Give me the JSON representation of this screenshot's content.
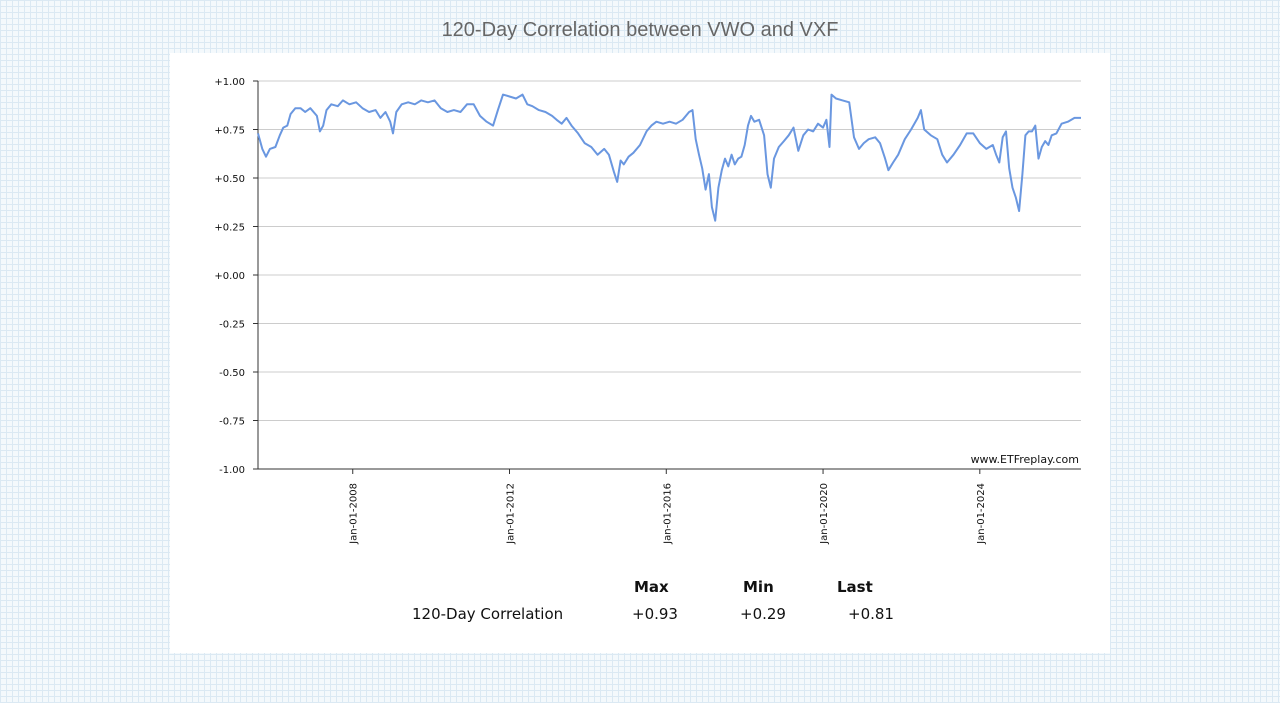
{
  "chart_data": {
    "type": "line",
    "title": "120-Day Correlation between VWO and VXF",
    "ylim": [
      -1.0,
      1.0
    ],
    "y_ticks": [
      "+1.00",
      "+0.75",
      "+0.50",
      "+0.25",
      "+0.00",
      "-0.25",
      "-0.50",
      "-0.75",
      "-1.00"
    ],
    "x_ticks": [
      "Jan-01-2008",
      "Jan-01-2012",
      "Jan-01-2016",
      "Jan-01-2020",
      "Jan-01-2024"
    ],
    "xlim": [
      "2005-08-01",
      "2026-08-01"
    ],
    "grid": "horizontal",
    "watermark": "www.ETFreplay.com",
    "line_color": "#6a97e0",
    "series": [
      {
        "values": [
          [
            "2005-08-01",
            0.73
          ],
          [
            "2005-09-10",
            0.65
          ],
          [
            "2005-10-15",
            0.61
          ],
          [
            "2005-11-20",
            0.65
          ],
          [
            "2006-01-10",
            0.66
          ],
          [
            "2006-02-20",
            0.72
          ],
          [
            "2006-03-25",
            0.76
          ],
          [
            "2006-05-01",
            0.77
          ],
          [
            "2006-06-01",
            0.83
          ],
          [
            "2006-07-15",
            0.86
          ],
          [
            "2006-09-01",
            0.86
          ],
          [
            "2006-10-15",
            0.84
          ],
          [
            "2006-12-01",
            0.86
          ],
          [
            "2007-02-01",
            0.82
          ],
          [
            "2007-03-01",
            0.74
          ],
          [
            "2007-04-01",
            0.77
          ],
          [
            "2007-05-01",
            0.85
          ],
          [
            "2007-06-15",
            0.88
          ],
          [
            "2007-08-15",
            0.87
          ],
          [
            "2007-10-01",
            0.9
          ],
          [
            "2007-12-01",
            0.88
          ],
          [
            "2008-02-01",
            0.89
          ],
          [
            "2008-04-01",
            0.86
          ],
          [
            "2008-06-01",
            0.84
          ],
          [
            "2008-08-01",
            0.85
          ],
          [
            "2008-09-15",
            0.81
          ],
          [
            "2008-11-01",
            0.84
          ],
          [
            "2008-12-15",
            0.79
          ],
          [
            "2009-01-10",
            0.73
          ],
          [
            "2009-02-10",
            0.84
          ],
          [
            "2009-04-01",
            0.88
          ],
          [
            "2009-06-01",
            0.89
          ],
          [
            "2009-08-01",
            0.88
          ],
          [
            "2009-10-01",
            0.9
          ],
          [
            "2009-12-01",
            0.89
          ],
          [
            "2010-02-01",
            0.9
          ],
          [
            "2010-04-01",
            0.86
          ],
          [
            "2010-06-01",
            0.84
          ],
          [
            "2010-08-01",
            0.85
          ],
          [
            "2010-10-01",
            0.84
          ],
          [
            "2010-12-01",
            0.88
          ],
          [
            "2011-02-01",
            0.88
          ],
          [
            "2011-04-01",
            0.82
          ],
          [
            "2011-06-01",
            0.79
          ],
          [
            "2011-08-01",
            0.77
          ],
          [
            "2011-09-15",
            0.85
          ],
          [
            "2011-11-01",
            0.93
          ],
          [
            "2012-01-01",
            0.92
          ],
          [
            "2012-03-01",
            0.91
          ],
          [
            "2012-05-01",
            0.93
          ],
          [
            "2012-06-15",
            0.88
          ],
          [
            "2012-08-01",
            0.87
          ],
          [
            "2012-10-01",
            0.85
          ],
          [
            "2012-12-01",
            0.84
          ],
          [
            "2013-02-01",
            0.82
          ],
          [
            "2013-03-15",
            0.8
          ],
          [
            "2013-05-01",
            0.78
          ],
          [
            "2013-06-15",
            0.81
          ],
          [
            "2013-08-01",
            0.77
          ],
          [
            "2013-10-01",
            0.73
          ],
          [
            "2013-12-01",
            0.68
          ],
          [
            "2014-02-01",
            0.66
          ],
          [
            "2014-04-01",
            0.62
          ],
          [
            "2014-06-01",
            0.65
          ],
          [
            "2014-07-15",
            0.62
          ],
          [
            "2014-09-01",
            0.53
          ],
          [
            "2014-10-01",
            0.48
          ],
          [
            "2014-11-01",
            0.59
          ],
          [
            "2014-12-01",
            0.57
          ],
          [
            "2015-01-15",
            0.61
          ],
          [
            "2015-03-01",
            0.63
          ],
          [
            "2015-05-01",
            0.67
          ],
          [
            "2015-07-01",
            0.74
          ],
          [
            "2015-08-15",
            0.77
          ],
          [
            "2015-10-01",
            0.79
          ],
          [
            "2015-12-01",
            0.78
          ],
          [
            "2016-02-01",
            0.79
          ],
          [
            "2016-04-01",
            0.78
          ],
          [
            "2016-06-01",
            0.8
          ],
          [
            "2016-08-01",
            0.84
          ],
          [
            "2016-09-01",
            0.85
          ],
          [
            "2016-10-01",
            0.7
          ],
          [
            "2016-11-01",
            0.62
          ],
          [
            "2016-12-01",
            0.55
          ],
          [
            "2017-01-01",
            0.44
          ],
          [
            "2017-02-01",
            0.52
          ],
          [
            "2017-03-01",
            0.35
          ],
          [
            "2017-04-01",
            0.28
          ],
          [
            "2017-05-01",
            0.45
          ],
          [
            "2017-06-01",
            0.54
          ],
          [
            "2017-07-01",
            0.6
          ],
          [
            "2017-08-01",
            0.56
          ],
          [
            "2017-09-01",
            0.62
          ],
          [
            "2017-10-01",
            0.57
          ],
          [
            "2017-11-01",
            0.6
          ],
          [
            "2017-12-01",
            0.61
          ],
          [
            "2018-01-01",
            0.67
          ],
          [
            "2018-02-01",
            0.77
          ],
          [
            "2018-03-01",
            0.82
          ],
          [
            "2018-04-01",
            0.79
          ],
          [
            "2018-05-15",
            0.8
          ],
          [
            "2018-07-01",
            0.72
          ],
          [
            "2018-08-01",
            0.52
          ],
          [
            "2018-09-01",
            0.45
          ],
          [
            "2018-10-01",
            0.6
          ],
          [
            "2018-11-15",
            0.66
          ],
          [
            "2019-01-01",
            0.69
          ],
          [
            "2019-02-15",
            0.72
          ],
          [
            "2019-04-01",
            0.76
          ],
          [
            "2019-05-15",
            0.64
          ],
          [
            "2019-07-01",
            0.72
          ],
          [
            "2019-08-15",
            0.75
          ],
          [
            "2019-10-01",
            0.74
          ],
          [
            "2019-11-15",
            0.78
          ],
          [
            "2020-01-01",
            0.76
          ],
          [
            "2020-02-01",
            0.8
          ],
          [
            "2020-03-01",
            0.66
          ],
          [
            "2020-03-20",
            0.93
          ],
          [
            "2020-05-01",
            0.91
          ],
          [
            "2020-07-01",
            0.9
          ],
          [
            "2020-09-01",
            0.89
          ],
          [
            "2020-10-15",
            0.71
          ],
          [
            "2020-12-01",
            0.65
          ],
          [
            "2021-01-15",
            0.68
          ],
          [
            "2021-03-01",
            0.7
          ],
          [
            "2021-05-01",
            0.71
          ],
          [
            "2021-06-15",
            0.68
          ],
          [
            "2021-08-01",
            0.6
          ],
          [
            "2021-09-01",
            0.54
          ],
          [
            "2021-10-15",
            0.58
          ],
          [
            "2021-12-01",
            0.62
          ],
          [
            "2022-02-01",
            0.7
          ],
          [
            "2022-04-01",
            0.75
          ],
          [
            "2022-06-01",
            0.81
          ],
          [
            "2022-07-01",
            0.85
          ],
          [
            "2022-08-01",
            0.75
          ],
          [
            "2022-10-01",
            0.72
          ],
          [
            "2022-12-01",
            0.7
          ],
          [
            "2023-01-15",
            0.62
          ],
          [
            "2023-03-01",
            0.58
          ],
          [
            "2023-05-01",
            0.62
          ],
          [
            "2023-07-01",
            0.67
          ],
          [
            "2023-09-01",
            0.73
          ],
          [
            "2023-11-01",
            0.73
          ],
          [
            "2024-01-01",
            0.68
          ],
          [
            "2024-03-01",
            0.65
          ],
          [
            "2024-05-01",
            0.67
          ],
          [
            "2024-06-01",
            0.62
          ],
          [
            "2024-07-01",
            0.58
          ],
          [
            "2024-08-01",
            0.71
          ],
          [
            "2024-09-01",
            0.74
          ],
          [
            "2024-10-01",
            0.55
          ],
          [
            "2024-11-01",
            0.45
          ],
          [
            "2024-12-01",
            0.4
          ],
          [
            "2025-01-01",
            0.33
          ],
          [
            "2025-02-01",
            0.52
          ],
          [
            "2025-03-01",
            0.72
          ],
          [
            "2025-04-01",
            0.74
          ],
          [
            "2025-05-01",
            0.74
          ],
          [
            "2025-06-01",
            0.77
          ],
          [
            "2025-07-01",
            0.6
          ],
          [
            "2025-08-01",
            0.66
          ],
          [
            "2025-09-01",
            0.69
          ],
          [
            "2025-10-01",
            0.67
          ],
          [
            "2025-11-01",
            0.72
          ],
          [
            "2025-12-15",
            0.73
          ],
          [
            "2026-02-01",
            0.78
          ],
          [
            "2026-04-01",
            0.79
          ],
          [
            "2026-06-01",
            0.81
          ],
          [
            "2026-08-01",
            0.81
          ]
        ]
      }
    ]
  },
  "stats": {
    "headers": [
      "Max",
      "Min",
      "Last"
    ],
    "row_label": "120-Day Correlation",
    "values": [
      "+0.93",
      "+0.29",
      "+0.81"
    ]
  }
}
